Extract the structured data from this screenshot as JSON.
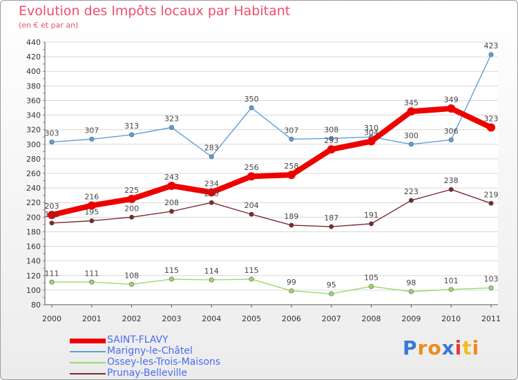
{
  "title": "Evolution des Impôts locaux par Habitant",
  "subtitle": "(en € et par an)",
  "brand": {
    "letters": [
      "P",
      "r",
      "o",
      "x",
      "i",
      "t",
      "i"
    ],
    "colors": [
      "#3a78d6",
      "#f08a1c",
      "#f08a1c",
      "#3a78d6",
      "#e63b2e",
      "#f0c020",
      "#f08a1c"
    ]
  },
  "chart_data": {
    "type": "line",
    "x": [
      "2000",
      "2001",
      "2002",
      "2003",
      "2004",
      "2005",
      "2006",
      "2007",
      "2008",
      "2009",
      "2010",
      "2011"
    ],
    "ylim": [
      80,
      440
    ],
    "yticks": [
      80,
      100,
      120,
      140,
      160,
      180,
      200,
      220,
      240,
      260,
      280,
      300,
      320,
      340,
      360,
      380,
      400,
      420,
      440
    ],
    "grid": "horizontal",
    "legend_position": "bottom-left",
    "series": [
      {
        "name": "SAINT-FLAVY",
        "color": "#ee0000",
        "values": [
          203,
          216,
          225,
          243,
          234,
          256,
          258,
          293,
          304,
          345,
          349,
          323
        ],
        "labels": [
          "203",
          "216",
          "225",
          "243",
          "234",
          "256",
          "258",
          "293",
          "304",
          "345",
          "349",
          "323"
        ]
      },
      {
        "name": "Marigny-le-Châtel",
        "color": "#5e9fd9",
        "values": [
          303,
          307,
          313,
          323,
          283,
          350,
          307,
          308,
          310,
          300,
          306,
          423
        ],
        "labels": [
          "303",
          "307",
          "313",
          "323",
          "283",
          "350",
          "307",
          "308",
          "310",
          "300",
          "306",
          "423"
        ]
      },
      {
        "name": "Ossey-les-Trois-Maisons",
        "color": "#9ad86c",
        "values": [
          111,
          111,
          108,
          115,
          114,
          115,
          99,
          95,
          105,
          98,
          101,
          103
        ],
        "labels": [
          "111",
          "111",
          "108",
          "115",
          "114",
          "115",
          "99",
          "95",
          "105",
          "98",
          "101",
          "103"
        ]
      },
      {
        "name": "Prunay-Belleville",
        "color": "#7a2a2e",
        "values": [
          192,
          195,
          200,
          208,
          220,
          204,
          189,
          187,
          191,
          223,
          238,
          219
        ],
        "labels": [
          "192",
          "195",
          "200",
          "208",
          "220",
          "204",
          "189",
          "187",
          "191",
          "223",
          "238",
          "219"
        ]
      }
    ]
  }
}
